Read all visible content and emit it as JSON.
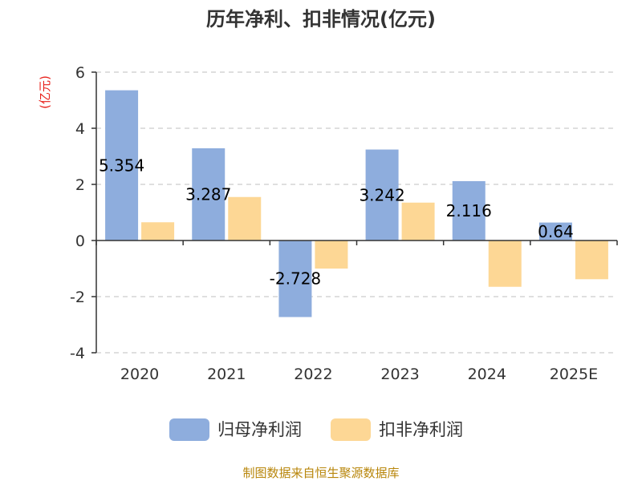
{
  "chart_data": {
    "type": "bar",
    "title": "历年净利、扣非情况(亿元)",
    "unit_label": "(亿元)",
    "categories": [
      "2020",
      "2021",
      "2022",
      "2023",
      "2024",
      "2025E"
    ],
    "ylim": [
      -4,
      6
    ],
    "yticks": [
      -4,
      -2,
      0,
      2,
      4,
      6
    ],
    "grid": true,
    "legend_position": "bottom",
    "series": [
      {
        "name": "归母净利润",
        "color": "#8eaddd",
        "values": [
          5.354,
          3.287,
          -2.728,
          3.242,
          2.116,
          0.64
        ],
        "labels": [
          "5.354",
          "3.287",
          "-2.728",
          "3.242",
          "2.116",
          "0.64"
        ]
      },
      {
        "name": "扣非净利润",
        "color": "#fdd795",
        "values": [
          0.65,
          1.55,
          -1.0,
          1.35,
          -1.65,
          -1.38
        ]
      }
    ]
  },
  "source": "制图数据来自恒生聚源数据库"
}
